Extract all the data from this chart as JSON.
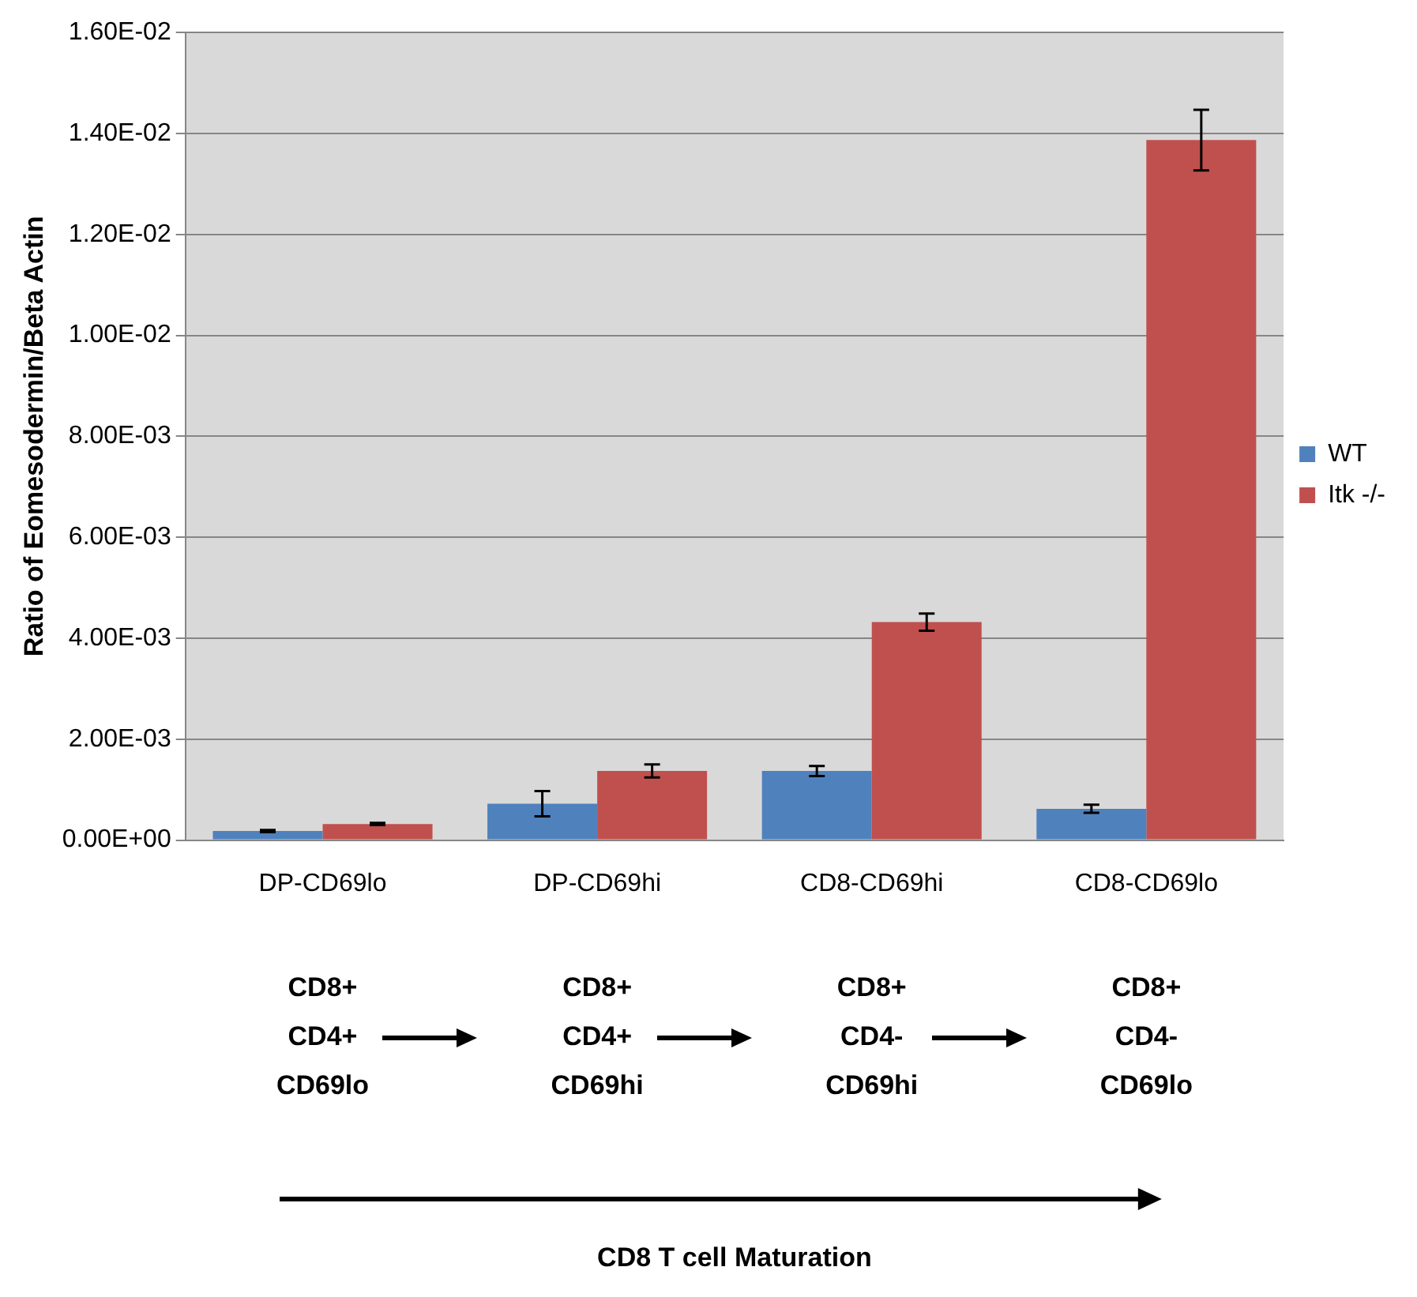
{
  "chart_data": {
    "type": "bar",
    "ylabel": "Ratio of Eomesodermin/Beta Actin",
    "categories": [
      "DP-CD69lo",
      "DP-CD69hi",
      "CD8-CD69hi",
      "CD8-CD69lo"
    ],
    "series": [
      {
        "name": "WT",
        "color": "#4f81bd",
        "values": [
          0.00018,
          0.00072,
          0.00137,
          0.00062
        ],
        "errors": [
          2e-05,
          0.00025,
          0.0001,
          8e-05
        ]
      },
      {
        "name": "Itk -/-",
        "color": "#c0504d",
        "values": [
          0.00032,
          0.00137,
          0.00432,
          0.01387
        ],
        "errors": [
          2e-05,
          0.00013,
          0.00017,
          0.0006
        ]
      }
    ],
    "ylim": [
      0,
      0.016
    ],
    "yticks": [
      {
        "value": 0,
        "label": "0.00E+00"
      },
      {
        "value": 0.002,
        "label": "2.00E-03"
      },
      {
        "value": 0.004,
        "label": "4.00E-03"
      },
      {
        "value": 0.006,
        "label": "6.00E-03"
      },
      {
        "value": 0.008,
        "label": "8.00E-03"
      },
      {
        "value": 0.01,
        "label": "1.00E-02"
      },
      {
        "value": 0.012,
        "label": "1.20E-02"
      },
      {
        "value": 0.014,
        "label": "1.40E-02"
      },
      {
        "value": 0.016,
        "label": "1.60E-02"
      }
    ],
    "grid": "y",
    "legend": "right",
    "annotations": [
      "CD8+\nCD4+\nCD69lo",
      "CD8+\nCD4+\nCD69hi",
      "CD8+\nCD4-\nCD69hi",
      "CD8+\nCD4-\nCD69lo",
      "CD8 T cell Maturation"
    ]
  }
}
